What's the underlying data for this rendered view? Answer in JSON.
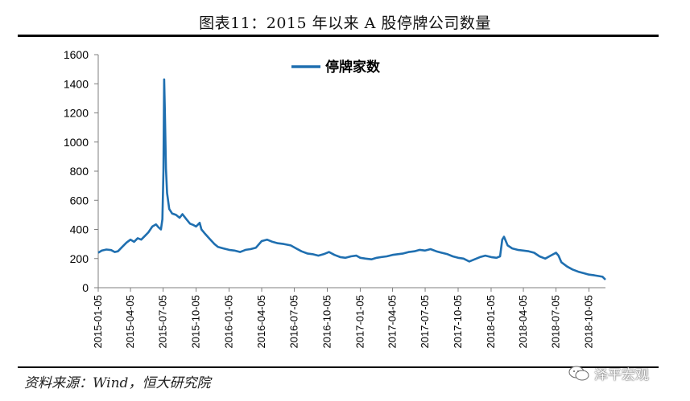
{
  "title": "图表11：2015 年以来 A 股停牌公司数量",
  "source": "资料来源：Wind，恒大研究院",
  "watermark": "泽平宏观",
  "colors": {
    "series": "#1f6fb0",
    "axis": "#7f7f7f",
    "rule": "#000000"
  },
  "chart_data": {
    "type": "line",
    "title": "",
    "xlabel": "",
    "ylabel": "",
    "ylim": [
      0,
      1600
    ],
    "yticks": [
      0,
      200,
      400,
      600,
      800,
      1000,
      1200,
      1400,
      1600
    ],
    "xlim": [
      "2015-01-05",
      "2018-11-20"
    ],
    "xticks": [
      "2015-01-05",
      "2015-04-05",
      "2015-07-05",
      "2015-10-05",
      "2016-01-05",
      "2016-04-05",
      "2016-07-05",
      "2016-10-05",
      "2017-01-05",
      "2017-04-05",
      "2017-07-05",
      "2017-10-05",
      "2018-01-05",
      "2018-04-05",
      "2018-07-05",
      "2018-10-05"
    ],
    "legend": "top-left inside",
    "grid": false,
    "series": [
      {
        "name": "停牌家数",
        "points": [
          [
            "2015-01-05",
            240
          ],
          [
            "2015-01-15",
            255
          ],
          [
            "2015-01-28",
            262
          ],
          [
            "2015-02-10",
            258
          ],
          [
            "2015-02-20",
            245
          ],
          [
            "2015-03-01",
            250
          ],
          [
            "2015-03-15",
            285
          ],
          [
            "2015-03-25",
            310
          ],
          [
            "2015-04-05",
            330
          ],
          [
            "2015-04-15",
            315
          ],
          [
            "2015-04-25",
            340
          ],
          [
            "2015-05-05",
            330
          ],
          [
            "2015-05-15",
            355
          ],
          [
            "2015-05-25",
            380
          ],
          [
            "2015-06-05",
            420
          ],
          [
            "2015-06-15",
            435
          ],
          [
            "2015-06-22",
            415
          ],
          [
            "2015-06-29",
            400
          ],
          [
            "2015-07-03",
            470
          ],
          [
            "2015-07-06",
            800
          ],
          [
            "2015-07-08",
            1430
          ],
          [
            "2015-07-10",
            1200
          ],
          [
            "2015-07-13",
            820
          ],
          [
            "2015-07-16",
            650
          ],
          [
            "2015-07-22",
            540
          ],
          [
            "2015-07-30",
            510
          ],
          [
            "2015-08-10",
            500
          ],
          [
            "2015-08-20",
            480
          ],
          [
            "2015-08-28",
            505
          ],
          [
            "2015-09-08",
            470
          ],
          [
            "2015-09-18",
            440
          ],
          [
            "2015-09-28",
            430
          ],
          [
            "2015-10-05",
            420
          ],
          [
            "2015-10-15",
            445
          ],
          [
            "2015-10-20",
            400
          ],
          [
            "2015-10-30",
            370
          ],
          [
            "2015-11-10",
            340
          ],
          [
            "2015-11-25",
            300
          ],
          [
            "2015-12-05",
            280
          ],
          [
            "2015-12-20",
            270
          ],
          [
            "2016-01-05",
            260
          ],
          [
            "2016-01-20",
            255
          ],
          [
            "2016-02-05",
            245
          ],
          [
            "2016-02-20",
            260
          ],
          [
            "2016-03-05",
            265
          ],
          [
            "2016-03-20",
            275
          ],
          [
            "2016-04-05",
            320
          ],
          [
            "2016-04-20",
            330
          ],
          [
            "2016-05-05",
            315
          ],
          [
            "2016-05-20",
            305
          ],
          [
            "2016-06-05",
            300
          ],
          [
            "2016-06-25",
            290
          ],
          [
            "2016-07-10",
            270
          ],
          [
            "2016-07-25",
            250
          ],
          [
            "2016-08-10",
            235
          ],
          [
            "2016-08-25",
            230
          ],
          [
            "2016-09-10",
            220
          ],
          [
            "2016-09-25",
            230
          ],
          [
            "2016-10-10",
            245
          ],
          [
            "2016-10-25",
            225
          ],
          [
            "2016-11-10",
            210
          ],
          [
            "2016-11-25",
            205
          ],
          [
            "2016-12-10",
            215
          ],
          [
            "2016-12-25",
            220
          ],
          [
            "2017-01-05",
            205
          ],
          [
            "2017-01-20",
            200
          ],
          [
            "2017-02-05",
            195
          ],
          [
            "2017-02-20",
            205
          ],
          [
            "2017-03-05",
            210
          ],
          [
            "2017-03-20",
            215
          ],
          [
            "2017-04-05",
            225
          ],
          [
            "2017-04-20",
            230
          ],
          [
            "2017-05-05",
            235
          ],
          [
            "2017-05-20",
            245
          ],
          [
            "2017-06-05",
            250
          ],
          [
            "2017-06-20",
            260
          ],
          [
            "2017-07-05",
            255
          ],
          [
            "2017-07-20",
            265
          ],
          [
            "2017-08-05",
            250
          ],
          [
            "2017-08-20",
            240
          ],
          [
            "2017-09-05",
            230
          ],
          [
            "2017-09-20",
            215
          ],
          [
            "2017-10-05",
            205
          ],
          [
            "2017-10-20",
            200
          ],
          [
            "2017-11-05",
            180
          ],
          [
            "2017-11-20",
            195
          ],
          [
            "2017-12-05",
            210
          ],
          [
            "2017-12-20",
            220
          ],
          [
            "2018-01-05",
            210
          ],
          [
            "2018-01-20",
            205
          ],
          [
            "2018-01-30",
            215
          ],
          [
            "2018-02-05",
            330
          ],
          [
            "2018-02-10",
            350
          ],
          [
            "2018-02-20",
            290
          ],
          [
            "2018-03-05",
            270
          ],
          [
            "2018-03-20",
            260
          ],
          [
            "2018-04-05",
            255
          ],
          [
            "2018-04-20",
            250
          ],
          [
            "2018-05-05",
            240
          ],
          [
            "2018-05-20",
            215
          ],
          [
            "2018-06-05",
            200
          ],
          [
            "2018-06-20",
            220
          ],
          [
            "2018-07-05",
            240
          ],
          [
            "2018-07-12",
            220
          ],
          [
            "2018-07-20",
            175
          ],
          [
            "2018-08-05",
            145
          ],
          [
            "2018-08-20",
            125
          ],
          [
            "2018-09-05",
            110
          ],
          [
            "2018-09-20",
            100
          ],
          [
            "2018-10-05",
            90
          ],
          [
            "2018-10-20",
            85
          ],
          [
            "2018-11-01",
            80
          ],
          [
            "2018-11-12",
            75
          ],
          [
            "2018-11-20",
            55
          ]
        ]
      }
    ]
  }
}
